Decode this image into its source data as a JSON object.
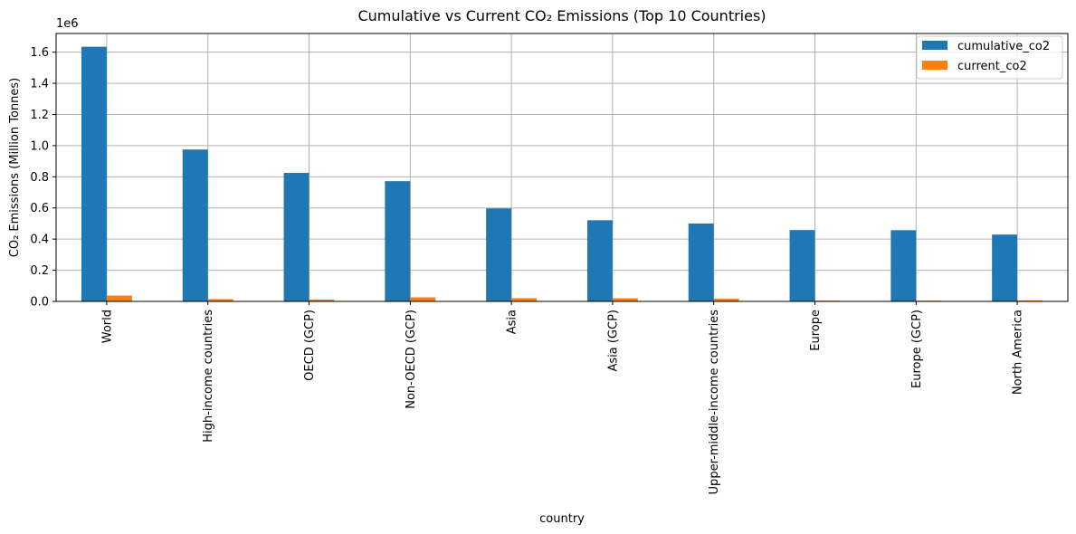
{
  "chart_data": {
    "type": "bar",
    "title": "Cumulative vs Current CO₂ Emissions (Top 10 Countries)",
    "xlabel": "country",
    "ylabel": "CO₂ Emissions (Million Tonnes)",
    "y_offset_label": "1e6",
    "y_scale_factor": 1000000,
    "ylim": [
      0,
      1720000
    ],
    "yticks": [
      0,
      200000,
      400000,
      600000,
      800000,
      1000000,
      1200000,
      1400000,
      1600000
    ],
    "ytick_labels": [
      "0.0",
      "0.2",
      "0.4",
      "0.6",
      "0.8",
      "1.0",
      "1.2",
      "1.4",
      "1.6"
    ],
    "grid": true,
    "legend_position": "top-right",
    "categories": [
      "World",
      "High-income countries",
      "OECD (GCP)",
      "Non-OECD (GCP)",
      "Asia",
      "Asia (GCP)",
      "Upper-middle-income countries",
      "Europe",
      "Europe (GCP)",
      "North America"
    ],
    "series": [
      {
        "name": "cumulative_co2",
        "color": "#1f77b4",
        "values": [
          1635000,
          975000,
          825000,
          772000,
          597000,
          521000,
          500000,
          458000,
          457000,
          429000
        ]
      },
      {
        "name": "current_co2",
        "color": "#ff7f0e",
        "values": [
          37500,
          14500,
          11500,
          26000,
          21000,
          20500,
          17000,
          5000,
          4500,
          6000
        ]
      }
    ]
  }
}
